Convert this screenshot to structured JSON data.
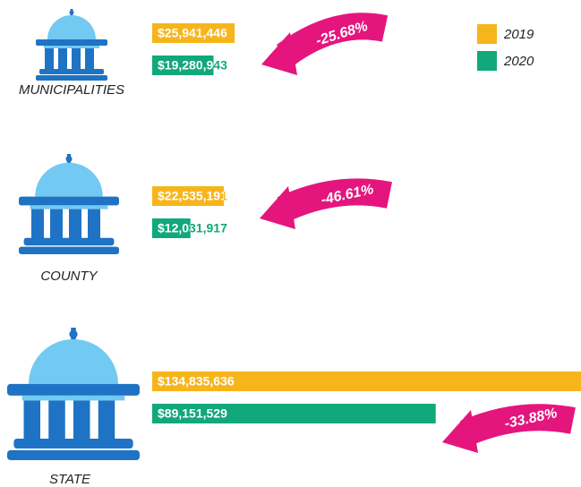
{
  "chart_data": {
    "type": "bar",
    "orientation": "horizontal",
    "categories": [
      "MUNICIPALITIES",
      "COUNTY",
      "STATE"
    ],
    "series": [
      {
        "name": "2019",
        "color": "#f7b51c",
        "values": [
          25941446,
          22535191,
          134835636
        ],
        "value_labels": [
          "$25,941,446",
          "$22,535,191",
          "$134,835,636"
        ]
      },
      {
        "name": "2020",
        "color": "#11a87b",
        "values": [
          19280943,
          12031917,
          89151529
        ],
        "value_labels": [
          "$19,280,943",
          "$12,031,917",
          "$89,151,529"
        ]
      }
    ],
    "xlim": [
      0,
      134835636
    ],
    "annotations": [
      "-25.68%",
      "-46.61%",
      "-33.88%"
    ],
    "annotation_color": "#e5157e",
    "legend": "top-right"
  }
}
